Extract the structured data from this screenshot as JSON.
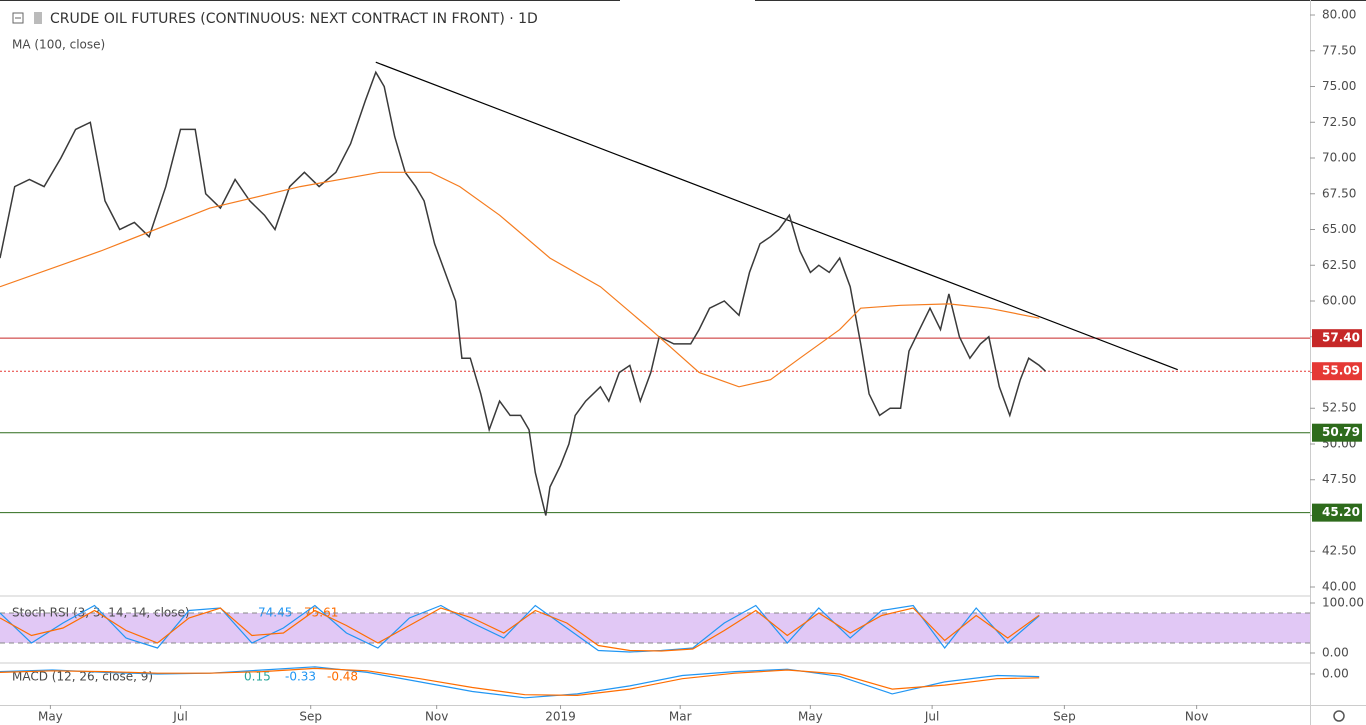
{
  "chart_data": [
    {
      "type": "line",
      "title": "CRUDE OIL FUTURES (CONTINUOUS: NEXT CONTRACT IN FRONT) · 1D",
      "subtitle": "MA (100, close)",
      "xlim": [
        0,
        624
      ],
      "xticks": [
        {
          "value": 24,
          "label": "May"
        },
        {
          "value": 86,
          "label": "Jul"
        },
        {
          "value": 148,
          "label": "Sep"
        },
        {
          "value": 208,
          "label": "Nov"
        },
        {
          "value": 267,
          "label": "2019"
        },
        {
          "value": 324,
          "label": "Mar"
        },
        {
          "value": 386,
          "label": "May"
        },
        {
          "value": 444,
          "label": "Jul"
        },
        {
          "value": 507,
          "label": "Sep"
        },
        {
          "value": 570,
          "label": "Nov"
        }
      ],
      "ylim": [
        39.44,
        81.05
      ],
      "yticks": [
        {
          "value": 80,
          "label": "80.00"
        },
        {
          "value": 77.5,
          "label": "77.50"
        },
        {
          "value": 75,
          "label": "75.00"
        },
        {
          "value": 72.5,
          "label": "72.50"
        },
        {
          "value": 70,
          "label": "70.00"
        },
        {
          "value": 67.5,
          "label": "67.50"
        },
        {
          "value": 65,
          "label": "65.00"
        },
        {
          "value": 62.5,
          "label": "62.50"
        },
        {
          "value": 60,
          "label": "60.00"
        },
        {
          "value": 57.5,
          "label": "57.50"
        },
        {
          "value": 55,
          "label": "55.00"
        },
        {
          "value": 52.5,
          "label": "52.50"
        },
        {
          "value": 50,
          "label": "50.00"
        },
        {
          "value": 47.5,
          "label": "47.50"
        },
        {
          "value": 45,
          "label": "45.00"
        },
        {
          "value": 42.5,
          "label": "42.50"
        },
        {
          "value": 40,
          "label": "40.00"
        }
      ],
      "series": [
        {
          "name": "CRUDE OIL FUTURES",
          "color": "#3a3a3a",
          "x": [
            0,
            7,
            14,
            21,
            29,
            36,
            43,
            50,
            57,
            64,
            71,
            79,
            86,
            93,
            98,
            105,
            112,
            119,
            126,
            131,
            138,
            145,
            152,
            160,
            167,
            174,
            179,
            183,
            188,
            193,
            198,
            202,
            207,
            212,
            217,
            220,
            224,
            229,
            233,
            238,
            243,
            248,
            252,
            255,
            260,
            262,
            267,
            271,
            274,
            279,
            286,
            290,
            295,
            300,
            305,
            310,
            314,
            321,
            329,
            333,
            338,
            345,
            352,
            357,
            362,
            367,
            371,
            376,
            381,
            386,
            390,
            395,
            400,
            405,
            410,
            414,
            419,
            424,
            429,
            433,
            438,
            443,
            448,
            452,
            457,
            462,
            467,
            471,
            476,
            481,
            486,
            490,
            495,
            498
          ],
          "values": [
            63,
            68,
            68.5,
            68,
            70,
            72,
            72.5,
            67,
            65,
            65.5,
            64.5,
            68,
            72,
            72,
            67.5,
            66.5,
            68.5,
            67,
            66,
            65,
            68,
            69,
            68,
            69,
            71,
            74,
            76,
            75,
            71.5,
            69,
            68,
            67,
            64,
            62,
            60,
            56,
            56,
            53.5,
            51,
            53,
            52,
            52,
            51,
            48,
            45,
            47,
            48.5,
            50,
            52,
            53,
            54,
            53,
            55,
            55.5,
            53,
            55,
            57.5,
            57,
            57,
            58,
            59.5,
            60,
            59,
            62,
            64,
            64.5,
            65,
            66,
            63.5,
            62,
            62.5,
            62,
            63,
            61,
            57,
            53.5,
            52,
            52.5,
            52.5,
            56.5,
            58,
            59.5,
            58,
            60.5,
            57.5,
            56,
            57,
            57.5,
            54,
            52,
            54.5,
            56,
            55.5,
            55.09
          ]
        },
        {
          "name": "MA (100, close)",
          "color": "#f57c1f",
          "x": [
            0,
            48,
            100,
            143,
            181,
            205,
            219,
            238,
            262,
            286,
            310,
            333,
            352,
            367,
            381,
            400,
            410,
            429,
            452,
            471,
            495
          ],
          "values": [
            61,
            63.5,
            66.5,
            68,
            69,
            69,
            68,
            66,
            63,
            61,
            58,
            55,
            54,
            54.5,
            56,
            58,
            59.5,
            59.7,
            59.8,
            59.5,
            58.8
          ]
        }
      ],
      "trendline": {
        "x": [
          179,
          561
        ],
        "y": [
          76.7,
          55.2
        ]
      },
      "levels": [
        {
          "value": 57.4,
          "label": "57.40",
          "color": "#c62828",
          "dotted": false
        },
        {
          "value": 55.09,
          "label": "55.09",
          "color": "#e53935",
          "dotted": true
        },
        {
          "value": 50.79,
          "label": "50.79",
          "color": "#2e6b1c",
          "dotted": false
        },
        {
          "value": 45.2,
          "label": "45.20",
          "color": "#2e6b1c",
          "dotted": false
        }
      ]
    },
    {
      "type": "line",
      "title": "Stoch RSI (3, 3, 14, 14, close)",
      "ylim": [
        -18,
        112
      ],
      "yticks": [
        {
          "value": 100,
          "label": "100.00"
        },
        {
          "value": 0,
          "label": "0.00"
        }
      ],
      "band": [
        20,
        80
      ],
      "band_color": "#e1c8f5",
      "series": [
        {
          "name": "K",
          "color": "#2196f3",
          "x": [
            0,
            15,
            30,
            45,
            60,
            75,
            90,
            105,
            120,
            135,
            150,
            165,
            180,
            195,
            210,
            225,
            240,
            255,
            270,
            285,
            300,
            315,
            330,
            345,
            360,
            375,
            390,
            405,
            420,
            435,
            450,
            465,
            480,
            495
          ],
          "values": [
            80,
            20,
            60,
            95,
            30,
            10,
            85,
            90,
            20,
            50,
            95,
            40,
            10,
            70,
            95,
            60,
            30,
            95,
            50,
            5,
            2,
            5,
            10,
            60,
            95,
            20,
            90,
            30,
            85,
            95,
            10,
            90,
            20,
            74.45
          ]
        },
        {
          "name": "D",
          "color": "#ff6d00",
          "x": [
            0,
            15,
            30,
            45,
            60,
            75,
            90,
            105,
            120,
            135,
            150,
            165,
            180,
            195,
            210,
            225,
            240,
            255,
            270,
            285,
            300,
            315,
            330,
            345,
            360,
            375,
            390,
            405,
            420,
            435,
            450,
            465,
            480,
            495
          ],
          "values": [
            70,
            35,
            50,
            85,
            45,
            20,
            70,
            90,
            35,
            40,
            85,
            55,
            20,
            55,
            90,
            70,
            40,
            85,
            60,
            15,
            5,
            4,
            8,
            45,
            85,
            35,
            80,
            40,
            75,
            90,
            25,
            75,
            30,
            75.61
          ]
        }
      ]
    },
    {
      "type": "line",
      "title": "MACD (12, 26, close, 9)",
      "ylim": [
        -3.9,
        1.25
      ],
      "yticks": [
        {
          "value": 0,
          "label": "0.00"
        }
      ],
      "histogram_value": 0.15,
      "series": [
        {
          "name": "MACD",
          "color": "#2196f3",
          "x": [
            0,
            25,
            50,
            75,
            100,
            125,
            150,
            175,
            200,
            225,
            250,
            275,
            300,
            325,
            350,
            375,
            400,
            425,
            450,
            475,
            495
          ],
          "values": [
            0.3,
            0.5,
            0.2,
            0.0,
            0.1,
            0.5,
            0.9,
            0.2,
            -1,
            -2.2,
            -3,
            -2.5,
            -1.5,
            -0.2,
            0.3,
            0.6,
            -0.3,
            -2.5,
            -1,
            -0.2,
            -0.33
          ]
        },
        {
          "name": "Signal",
          "color": "#ff6d00",
          "x": [
            0,
            25,
            50,
            75,
            100,
            125,
            150,
            175,
            200,
            225,
            250,
            275,
            300,
            325,
            350,
            375,
            400,
            425,
            450,
            475,
            495
          ],
          "values": [
            0.2,
            0.4,
            0.3,
            0.1,
            0.1,
            0.3,
            0.7,
            0.4,
            -0.6,
            -1.7,
            -2.6,
            -2.7,
            -1.9,
            -0.6,
            0.1,
            0.5,
            0.0,
            -1.9,
            -1.4,
            -0.6,
            -0.48
          ]
        }
      ]
    }
  ]
}
